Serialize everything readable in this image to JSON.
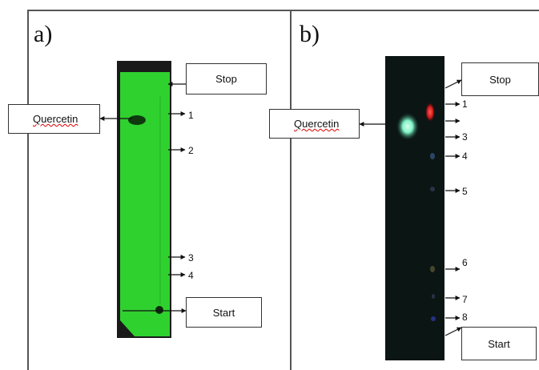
{
  "panel_a": {
    "label": "a)",
    "stop_label": "Stop",
    "start_label": "Start",
    "compound_label": "Quercetin",
    "spots": [
      "1",
      "2",
      "3",
      "4"
    ]
  },
  "panel_b": {
    "label": "b)",
    "stop_label": "Stop",
    "start_label": "Start",
    "compound_label": "Quercetin",
    "spots": [
      "1",
      "3",
      "4",
      "5",
      "6",
      "7",
      "8"
    ]
  },
  "colors": {
    "plate_a": "#2fd12f",
    "plate_b": "#0b1514",
    "quercetin_spot_b": "#8fffd6",
    "red_spot_b": "#ff2b2b"
  }
}
